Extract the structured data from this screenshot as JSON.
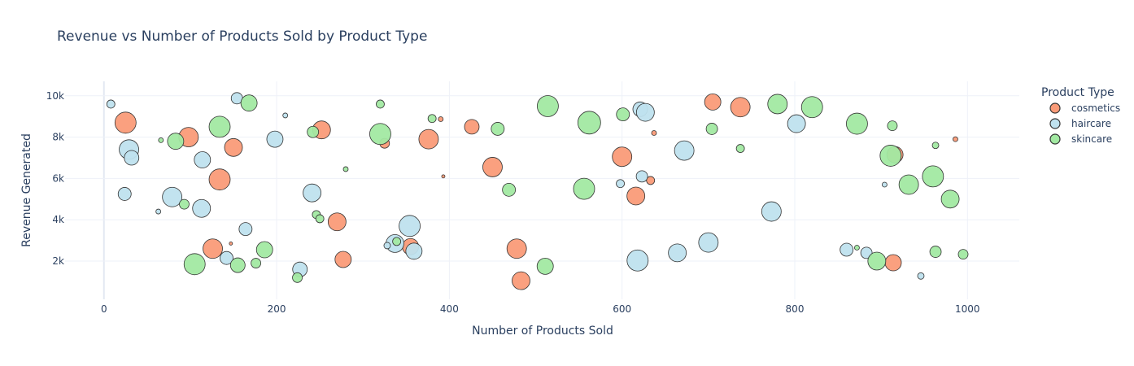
{
  "chart_data": {
    "type": "scatter",
    "title": "Revenue vs Number of Products Sold by Product Type",
    "xlabel": "Number of Products Sold",
    "ylabel": "Revenue Generated",
    "xlim": [
      -45,
      1060
    ],
    "ylim": [
      150,
      10700
    ],
    "x_ticks": [
      0,
      200,
      400,
      600,
      800,
      1000
    ],
    "x_tick_labels": [
      "0",
      "200",
      "400",
      "600",
      "800",
      "1000"
    ],
    "y_ticks": [
      2000,
      4000,
      6000,
      8000,
      10000
    ],
    "y_tick_labels": [
      "2k",
      "4k",
      "6k",
      "8k",
      "10k"
    ],
    "grid": true,
    "legend_title": "Product Type",
    "legend_position": "right",
    "marker_note": "bubble size varies",
    "series": [
      {
        "name": "cosmetics",
        "color": "#fa9b78",
        "points": [
          {
            "x": 25,
            "y": 8700,
            "r": 13
          },
          {
            "x": 98,
            "y": 8000,
            "r": 12
          },
          {
            "x": 150,
            "y": 7500,
            "r": 11
          },
          {
            "x": 134,
            "y": 5950,
            "r": 13
          },
          {
            "x": 126,
            "y": 2600,
            "r": 12
          },
          {
            "x": 147,
            "y": 2850,
            "r": 2
          },
          {
            "x": 252,
            "y": 8350,
            "r": 11
          },
          {
            "x": 270,
            "y": 3900,
            "r": 11
          },
          {
            "x": 277,
            "y": 2080,
            "r": 10
          },
          {
            "x": 325,
            "y": 7700,
            "r": 6
          },
          {
            "x": 376,
            "y": 7900,
            "r": 12
          },
          {
            "x": 390,
            "y": 8870,
            "r": 3
          },
          {
            "x": 393,
            "y": 6100,
            "r": 2
          },
          {
            "x": 355,
            "y": 2700,
            "r": 10
          },
          {
            "x": 426,
            "y": 8500,
            "r": 9
          },
          {
            "x": 450,
            "y": 6550,
            "r": 12
          },
          {
            "x": 478,
            "y": 2600,
            "r": 12
          },
          {
            "x": 483,
            "y": 1050,
            "r": 11
          },
          {
            "x": 600,
            "y": 7050,
            "r": 12
          },
          {
            "x": 616,
            "y": 5150,
            "r": 11
          },
          {
            "x": 633,
            "y": 5900,
            "r": 5
          },
          {
            "x": 637,
            "y": 8200,
            "r": 3
          },
          {
            "x": 705,
            "y": 9700,
            "r": 10
          },
          {
            "x": 737,
            "y": 9450,
            "r": 12
          },
          {
            "x": 916,
            "y": 7150,
            "r": 10
          },
          {
            "x": 914,
            "y": 1920,
            "r": 10
          },
          {
            "x": 986,
            "y": 7900,
            "r": 3
          }
        ]
      },
      {
        "name": "haircare",
        "color": "#bfe1ee",
        "points": [
          {
            "x": 8,
            "y": 9600,
            "r": 5
          },
          {
            "x": 29,
            "y": 7400,
            "r": 12
          },
          {
            "x": 32,
            "y": 7000,
            "r": 9
          },
          {
            "x": 24,
            "y": 5250,
            "r": 8
          },
          {
            "x": 79,
            "y": 5100,
            "r": 12
          },
          {
            "x": 114,
            "y": 6900,
            "r": 10
          },
          {
            "x": 113,
            "y": 4550,
            "r": 11
          },
          {
            "x": 63,
            "y": 4400,
            "r": 3
          },
          {
            "x": 154,
            "y": 9880,
            "r": 7
          },
          {
            "x": 164,
            "y": 3550,
            "r": 8
          },
          {
            "x": 142,
            "y": 2150,
            "r": 8
          },
          {
            "x": 198,
            "y": 7900,
            "r": 10
          },
          {
            "x": 210,
            "y": 9050,
            "r": 3
          },
          {
            "x": 241,
            "y": 5300,
            "r": 11
          },
          {
            "x": 227,
            "y": 1600,
            "r": 9
          },
          {
            "x": 354,
            "y": 3700,
            "r": 13
          },
          {
            "x": 337,
            "y": 2850,
            "r": 11
          },
          {
            "x": 359,
            "y": 2480,
            "r": 10
          },
          {
            "x": 328,
            "y": 2750,
            "r": 4
          },
          {
            "x": 598,
            "y": 5750,
            "r": 5
          },
          {
            "x": 621,
            "y": 9350,
            "r": 9
          },
          {
            "x": 627,
            "y": 9200,
            "r": 11
          },
          {
            "x": 623,
            "y": 6100,
            "r": 7
          },
          {
            "x": 618,
            "y": 2030,
            "r": 13
          },
          {
            "x": 672,
            "y": 7350,
            "r": 12
          },
          {
            "x": 664,
            "y": 2400,
            "r": 11
          },
          {
            "x": 700,
            "y": 2900,
            "r": 12
          },
          {
            "x": 802,
            "y": 8650,
            "r": 11
          },
          {
            "x": 773,
            "y": 4400,
            "r": 12
          },
          {
            "x": 860,
            "y": 2550,
            "r": 8
          },
          {
            "x": 883,
            "y": 2400,
            "r": 7
          },
          {
            "x": 904,
            "y": 5700,
            "r": 3
          },
          {
            "x": 946,
            "y": 1280,
            "r": 4
          }
        ]
      },
      {
        "name": "skincare",
        "color": "#a2e9a2",
        "points": [
          {
            "x": 66,
            "y": 7850,
            "r": 3
          },
          {
            "x": 83,
            "y": 7800,
            "r": 10
          },
          {
            "x": 93,
            "y": 4750,
            "r": 6
          },
          {
            "x": 105,
            "y": 1850,
            "r": 13
          },
          {
            "x": 134,
            "y": 8500,
            "r": 13
          },
          {
            "x": 155,
            "y": 1800,
            "r": 9
          },
          {
            "x": 168,
            "y": 9650,
            "r": 10
          },
          {
            "x": 176,
            "y": 1900,
            "r": 6
          },
          {
            "x": 186,
            "y": 2550,
            "r": 10
          },
          {
            "x": 224,
            "y": 1200,
            "r": 6
          },
          {
            "x": 242,
            "y": 8250,
            "r": 7
          },
          {
            "x": 246,
            "y": 4250,
            "r": 5
          },
          {
            "x": 250,
            "y": 4050,
            "r": 5
          },
          {
            "x": 280,
            "y": 6450,
            "r": 3
          },
          {
            "x": 320,
            "y": 8150,
            "r": 13
          },
          {
            "x": 320,
            "y": 9600,
            "r": 5
          },
          {
            "x": 339,
            "y": 2950,
            "r": 5
          },
          {
            "x": 380,
            "y": 8900,
            "r": 5
          },
          {
            "x": 456,
            "y": 8400,
            "r": 8
          },
          {
            "x": 469,
            "y": 5450,
            "r": 8
          },
          {
            "x": 511,
            "y": 1750,
            "r": 10
          },
          {
            "x": 514,
            "y": 9500,
            "r": 13
          },
          {
            "x": 556,
            "y": 5500,
            "r": 13
          },
          {
            "x": 562,
            "y": 8700,
            "r": 14
          },
          {
            "x": 601,
            "y": 9100,
            "r": 8
          },
          {
            "x": 704,
            "y": 8400,
            "r": 7
          },
          {
            "x": 737,
            "y": 7450,
            "r": 5
          },
          {
            "x": 780,
            "y": 9600,
            "r": 12
          },
          {
            "x": 820,
            "y": 9450,
            "r": 13
          },
          {
            "x": 872,
            "y": 8650,
            "r": 13
          },
          {
            "x": 872,
            "y": 2650,
            "r": 3
          },
          {
            "x": 895,
            "y": 2000,
            "r": 11
          },
          {
            "x": 911,
            "y": 7100,
            "r": 13
          },
          {
            "x": 913,
            "y": 8550,
            "r": 6
          },
          {
            "x": 932,
            "y": 5700,
            "r": 12
          },
          {
            "x": 960,
            "y": 6100,
            "r": 13
          },
          {
            "x": 963,
            "y": 7600,
            "r": 4
          },
          {
            "x": 963,
            "y": 2450,
            "r": 7
          },
          {
            "x": 980,
            "y": 5000,
            "r": 11
          },
          {
            "x": 995,
            "y": 2330,
            "r": 6
          }
        ]
      }
    ]
  }
}
